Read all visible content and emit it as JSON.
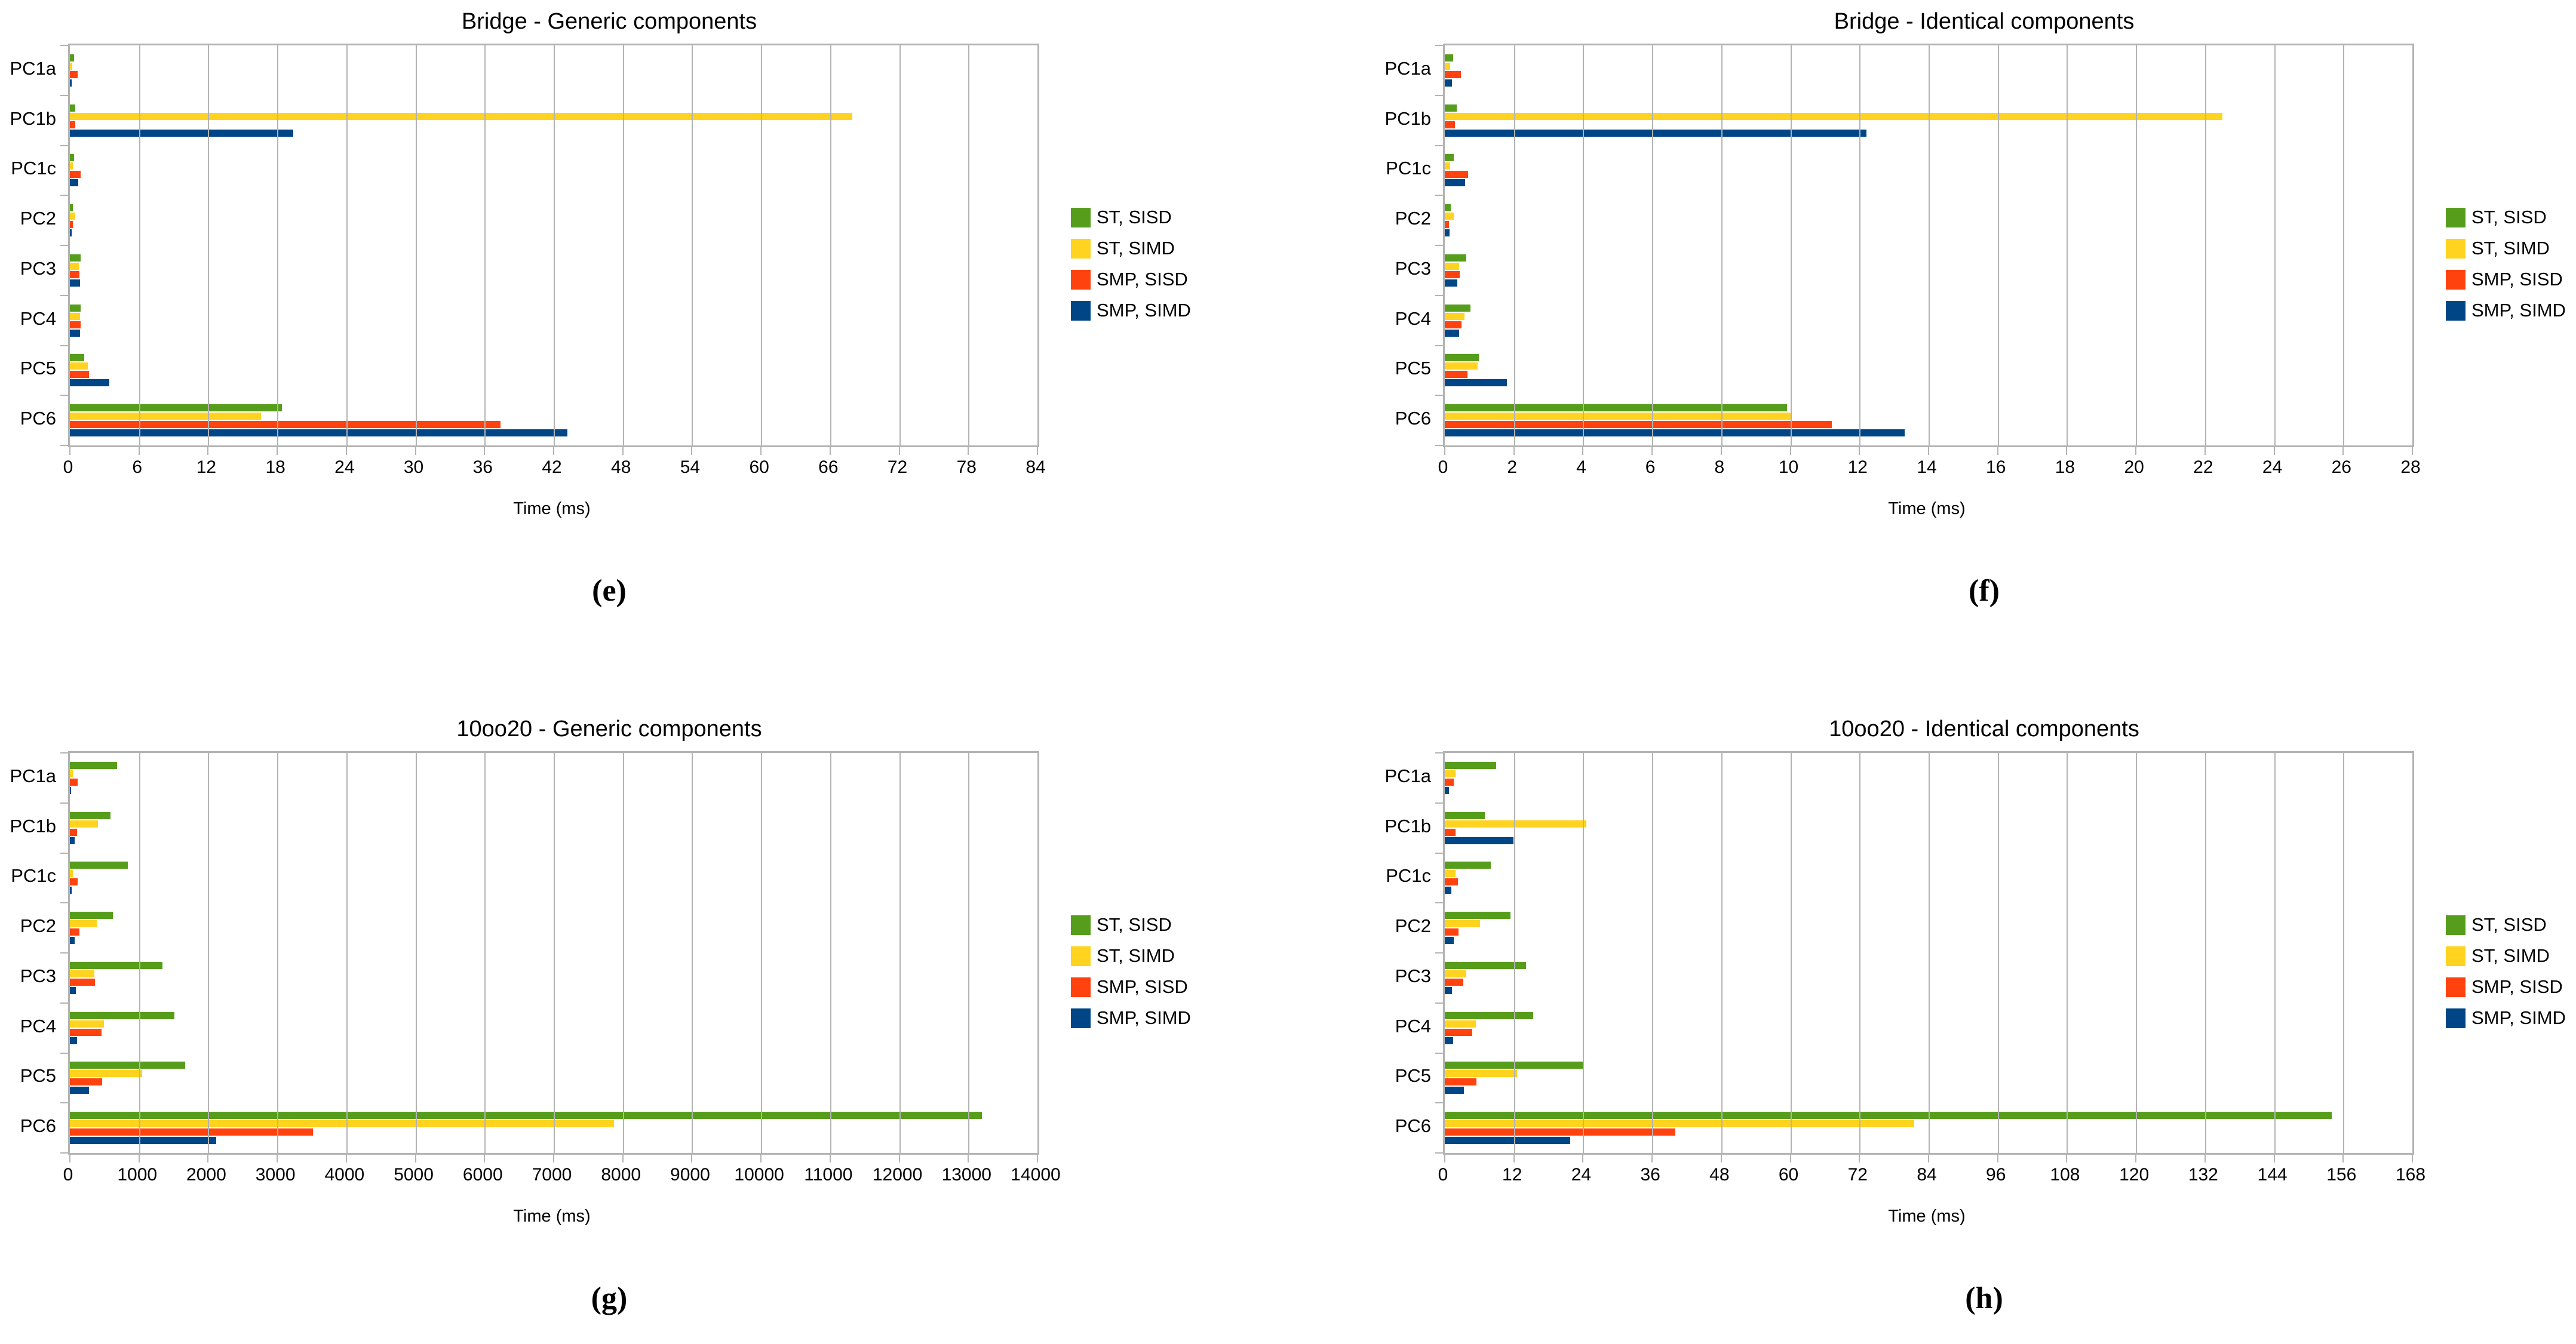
{
  "figure": {
    "background": "#ffffff",
    "grid_color": "#b3b3b3",
    "text_color": "#000000"
  },
  "legend": {
    "labels": [
      "ST, SISD",
      "ST, SIMD",
      "SMP, SISD",
      "SMP, SIMD"
    ],
    "position": "right"
  },
  "chart_data": [
    {
      "type": "bar",
      "orientation": "horizontal",
      "title": "Bridge - Generic components",
      "caption": "(e)",
      "xlabel": "Time (ms)",
      "xlim": [
        0,
        84
      ],
      "xmax": 84,
      "xstep": 6,
      "grid": true,
      "legend_position": "right",
      "categories": [
        "PC1a",
        "PC1b",
        "PC1c",
        "PC2",
        "PC3",
        "PC4",
        "PC5",
        "PC6"
      ],
      "series": [
        {
          "name": "ST, SISD",
          "color": "#579d1c",
          "values": [
            0.38,
            0.47,
            0.38,
            0.28,
            0.91,
            0.93,
            1.27,
            18.4
          ]
        },
        {
          "name": "ST, SIMD",
          "color": "#ffd320",
          "values": [
            0.23,
            67.9,
            0.24,
            0.49,
            0.8,
            0.87,
            1.57,
            16.6
          ]
        },
        {
          "name": "SMP, SISD",
          "color": "#ff420e",
          "values": [
            0.66,
            0.45,
            0.93,
            0.26,
            0.82,
            0.94,
            1.68,
            37.4
          ]
        },
        {
          "name": "SMP, SIMD",
          "color": "#004586",
          "values": [
            0.16,
            19.4,
            0.7,
            0.16,
            0.86,
            0.86,
            3.42,
            43.2
          ]
        }
      ]
    },
    {
      "type": "bar",
      "orientation": "horizontal",
      "title": "Bridge - Identical components",
      "caption": "(f)",
      "xlabel": "Time (ms)",
      "xlim": [
        0,
        28
      ],
      "xmax": 28,
      "xstep": 2,
      "grid": true,
      "legend_position": "right",
      "categories": [
        "PC1a",
        "PC1b",
        "PC1c",
        "PC2",
        "PC3",
        "PC4",
        "PC5",
        "PC6"
      ],
      "series": [
        {
          "name": "ST, SISD",
          "color": "#579d1c",
          "values": [
            0.24,
            0.35,
            0.26,
            0.17,
            0.63,
            0.74,
            0.98,
            9.9
          ]
        },
        {
          "name": "ST, SIMD",
          "color": "#ffd320",
          "values": [
            0.15,
            22.5,
            0.16,
            0.26,
            0.42,
            0.57,
            0.95,
            10.0
          ]
        },
        {
          "name": "SMP, SISD",
          "color": "#ff420e",
          "values": [
            0.46,
            0.3,
            0.68,
            0.12,
            0.44,
            0.48,
            0.66,
            11.2
          ]
        },
        {
          "name": "SMP, SIMD",
          "color": "#004586",
          "values": [
            0.2,
            12.2,
            0.58,
            0.13,
            0.37,
            0.41,
            1.8,
            13.3
          ]
        }
      ]
    },
    {
      "type": "bar",
      "orientation": "horizontal",
      "title": "10oo20 - Generic components",
      "caption": "(g)",
      "xlabel": "Time (ms)",
      "xlim": [
        0,
        14000
      ],
      "xmax": 14000,
      "xstep": 1000,
      "grid": true,
      "legend_position": "right",
      "categories": [
        "PC1a",
        "PC1b",
        "PC1c",
        "PC2",
        "PC3",
        "PC4",
        "PC5",
        "PC6"
      ],
      "series": [
        {
          "name": "ST, SISD",
          "color": "#579d1c",
          "values": [
            680,
            585,
            835,
            625,
            1340,
            1515,
            1665,
            13200
          ]
        },
        {
          "name": "ST, SIMD",
          "color": "#ffd320",
          "values": [
            40,
            410,
            45,
            390,
            350,
            490,
            1045,
            7870
          ]
        },
        {
          "name": "SMP, SISD",
          "color": "#ff420e",
          "values": [
            115,
            100,
            110,
            135,
            360,
            455,
            465,
            3515
          ]
        },
        {
          "name": "SMP, SIMD",
          "color": "#004586",
          "values": [
            20,
            70,
            25,
            70,
            90,
            105,
            275,
            2115
          ]
        }
      ]
    },
    {
      "type": "bar",
      "orientation": "horizontal",
      "title": "10oo20 - Identical components",
      "caption": "(h)",
      "xlabel": "Time (ms)",
      "xlim": [
        0,
        168
      ],
      "xmax": 168,
      "xstep": 12,
      "grid": true,
      "legend_position": "right",
      "categories": [
        "PC1a",
        "PC1b",
        "PC1c",
        "PC2",
        "PC3",
        "PC4",
        "PC5",
        "PC6"
      ],
      "series": [
        {
          "name": "ST, SISD",
          "color": "#579d1c",
          "values": [
            8.9,
            6.9,
            8.0,
            11.4,
            14.1,
            15.3,
            24.1,
            154
          ]
        },
        {
          "name": "ST, SIMD",
          "color": "#ffd320",
          "values": [
            1.9,
            24.6,
            1.9,
            6.1,
            3.7,
            5.4,
            12.5,
            81.5
          ]
        },
        {
          "name": "SMP, SISD",
          "color": "#ff420e",
          "values": [
            1.6,
            1.9,
            2.3,
            2.4,
            3.2,
            4.8,
            5.5,
            40
          ]
        },
        {
          "name": "SMP, SIMD",
          "color": "#004586",
          "values": [
            0.7,
            11.9,
            1.1,
            1.6,
            1.2,
            1.4,
            3.3,
            21.8
          ]
        }
      ]
    }
  ]
}
